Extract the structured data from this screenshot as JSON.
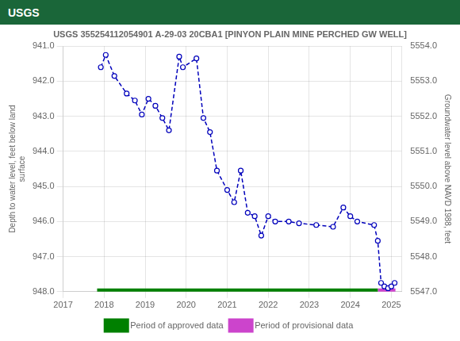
{
  "chart_data": {
    "type": "line",
    "title": "USGS 355254112054901 A-29-03 20CBA1 [PINYON PLAIN MINE PERCHED GW WELL]",
    "annotations": [
      "USGS"
    ],
    "y_label": "Depth to water level, feet below land\nsurface",
    "y2_label": "Groundwater level above NAVD 1988, feet",
    "x": [
      2017.92,
      2018.04,
      2018.25,
      2018.55,
      2018.75,
      2018.92,
      2019.08,
      2019.25,
      2019.42,
      2019.58,
      2019.83,
      2019.92,
      2020.25,
      2020.42,
      2020.58,
      2020.75,
      2021.0,
      2021.17,
      2021.33,
      2021.5,
      2021.67,
      2021.83,
      2022.0,
      2022.17,
      2022.5,
      2022.75,
      2023.17,
      2023.58,
      2023.83,
      2024.0,
      2024.17,
      2024.58,
      2024.67,
      2024.75,
      2024.83,
      2024.92,
      2025.0,
      2025.08
    ],
    "series": [
      {
        "color": "#0000bb",
        "line_style": "dashed",
        "marker": "circle",
        "values": [
          941.6,
          941.25,
          941.85,
          942.35,
          942.55,
          942.95,
          942.5,
          942.7,
          943.05,
          943.4,
          941.3,
          941.6,
          941.35,
          943.05,
          943.45,
          944.55,
          945.1,
          945.45,
          944.55,
          945.75,
          945.85,
          946.4,
          945.85,
          946.0,
          946.0,
          946.05,
          946.1,
          946.15,
          945.6,
          945.85,
          946.0,
          946.1,
          946.55,
          947.75,
          947.85,
          947.9,
          947.85,
          947.75
        ]
      },
      {
        "name": "Period of approved data",
        "color": "#008000",
        "x": [
          2017.83,
          2024.67
        ],
        "values": [
          948.0,
          948.0
        ]
      },
      {
        "name": "Period of provisional data",
        "color": "#cc44cc",
        "x": [
          2024.67,
          2025.1
        ],
        "values": [
          948.0,
          948.0
        ]
      }
    ],
    "xlim": [
      2017.0,
      2025.25
    ],
    "xticks": [
      2017,
      2018,
      2019,
      2020,
      2021,
      2022,
      2023,
      2024,
      2025
    ],
    "ylim": [
      948.0,
      941.0
    ],
    "yticks": [
      {
        "value": 941.0,
        "label": "941.0"
      },
      {
        "value": 942.0,
        "label": "942.0"
      },
      {
        "value": 943.0,
        "label": "943.0"
      },
      {
        "value": 944.0,
        "label": "944.0"
      },
      {
        "value": 945.0,
        "label": "945.0"
      },
      {
        "value": 946.0,
        "label": "946.0"
      },
      {
        "value": 947.0,
        "label": "947.0"
      },
      {
        "value": 948.0,
        "label": "948.0"
      }
    ],
    "y2lim": [
      5547.0,
      5554.0
    ],
    "y2ticks": [
      {
        "value": 5547.0,
        "label": "5547.0"
      },
      {
        "value": 5548.0,
        "label": "5548.0"
      },
      {
        "value": 5549.0,
        "label": "5549.0"
      },
      {
        "value": 5550.0,
        "label": "5550.0"
      },
      {
        "value": 5551.0,
        "label": "5551.0"
      },
      {
        "value": 5552.0,
        "label": "5552.0"
      },
      {
        "value": 5553.0,
        "label": "5553.0"
      },
      {
        "value": 5554.0,
        "label": "5554.0"
      }
    ],
    "grid": true,
    "legend": "bottom"
  }
}
